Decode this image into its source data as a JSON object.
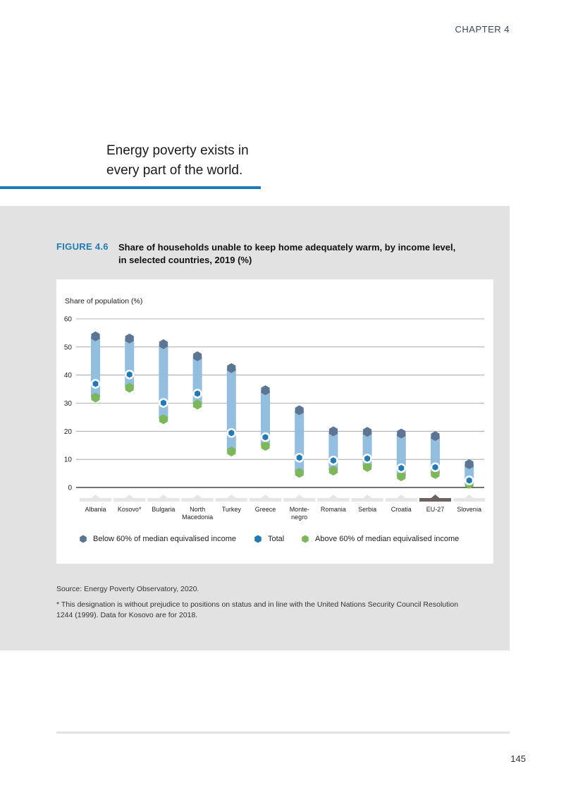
{
  "header": {
    "chapter": "CHAPTER 4"
  },
  "pull_quote": {
    "line1": "Energy poverty exists in",
    "line2": "every part of the world."
  },
  "figure": {
    "label": "FIGURE 4.6",
    "title": "Share of households unable to keep home adequately warm, by income level, in selected countries, 2019 (%)"
  },
  "chart_data": {
    "type": "range-dot",
    "title": "Share of households unable to keep home adequately warm, by income level, in selected countries, 2019 (%)",
    "ylabel": "Share of population (%)",
    "ylim": [
      0,
      60
    ],
    "yticks": [
      0,
      10,
      20,
      30,
      40,
      50,
      60
    ],
    "grid": true,
    "categories": [
      {
        "label": "Albania",
        "label2": ""
      },
      {
        "label": "Kosovo*",
        "label2": ""
      },
      {
        "label": "Bulgaria",
        "label2": ""
      },
      {
        "label": "North",
        "label2": "Macedonia"
      },
      {
        "label": "Turkey",
        "label2": ""
      },
      {
        "label": "Greece",
        "label2": ""
      },
      {
        "label": "Monte-",
        "label2": "negro"
      },
      {
        "label": "Romania",
        "label2": ""
      },
      {
        "label": "Serbia",
        "label2": ""
      },
      {
        "label": "Croatia",
        "label2": ""
      },
      {
        "label": "EU-27",
        "label2": ""
      },
      {
        "label": "Slovenia",
        "label2": ""
      }
    ],
    "highlight_category": "EU-27",
    "series": [
      {
        "name": "Below 60% of median equivalised income",
        "color": "#5b7593",
        "values": [
          53.8,
          53.0,
          51.0,
          46.7,
          42.5,
          34.6,
          27.5,
          20.0,
          19.8,
          19.2,
          18.3,
          8.3
        ]
      },
      {
        "name": "Total",
        "color": "#1f7ab8",
        "values": [
          36.9,
          40.2,
          30.1,
          33.4,
          19.4,
          17.9,
          10.6,
          9.6,
          10.3,
          6.9,
          7.2,
          2.5
        ]
      },
      {
        "name": "Above 60% of median equivalised income",
        "color": "#7cb85a",
        "values": [
          32.0,
          35.5,
          24.3,
          29.5,
          12.8,
          14.8,
          5.2,
          6.0,
          7.3,
          4.0,
          4.8,
          1.3
        ]
      }
    ],
    "range_bar_color": "#92bedf",
    "legend_position": "bottom"
  },
  "source": "Source: Energy Poverty Observatory, 2020.",
  "footnote": "* This designation is without prejudice to positions on status and in line with the United Nations Security Council Resolution 1244 (1999). Data for Kosovo are for 2018.",
  "page_number": "145"
}
